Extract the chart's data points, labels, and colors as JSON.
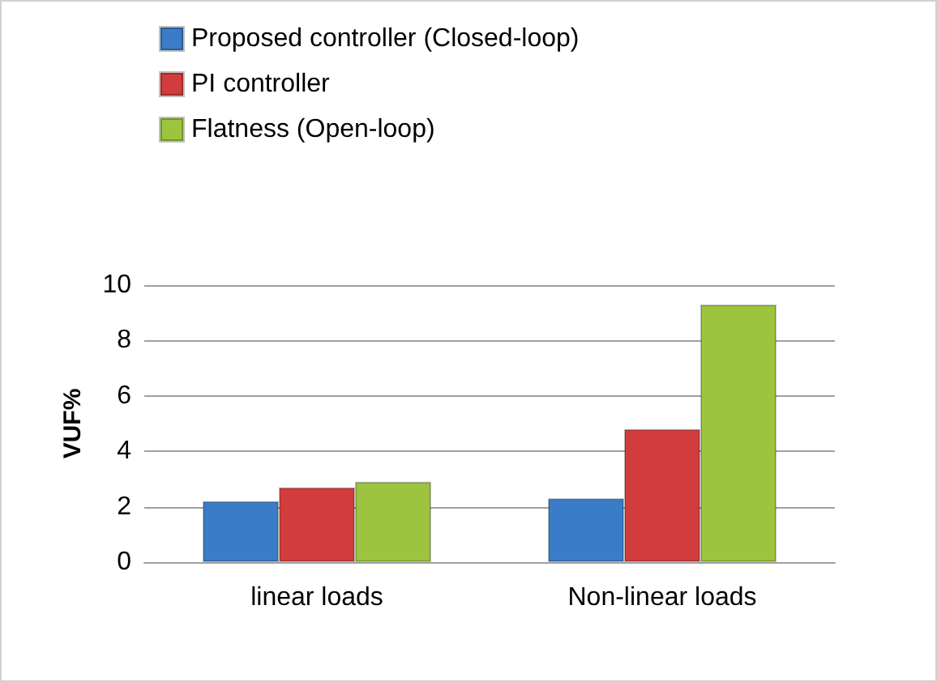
{
  "chart_data": {
    "type": "bar",
    "ylabel": "VUF%",
    "categories": [
      "linear loads",
      "Non-linear loads"
    ],
    "series": [
      {
        "name": "Proposed controller (Closed-loop)",
        "color": "#3a7cc8",
        "values": [
          2.2,
          2.3
        ]
      },
      {
        "name": "PI controller",
        "color": "#d23c3c",
        "values": [
          2.7,
          4.8
        ]
      },
      {
        "name": "Flatness (Open-loop)",
        "color": "#9cc43e",
        "values": [
          2.9,
          9.3
        ]
      }
    ],
    "ylim": [
      0,
      10
    ],
    "yticks": [
      0,
      2,
      4,
      6,
      8,
      10
    ],
    "grid": "y",
    "legend": "top left"
  }
}
